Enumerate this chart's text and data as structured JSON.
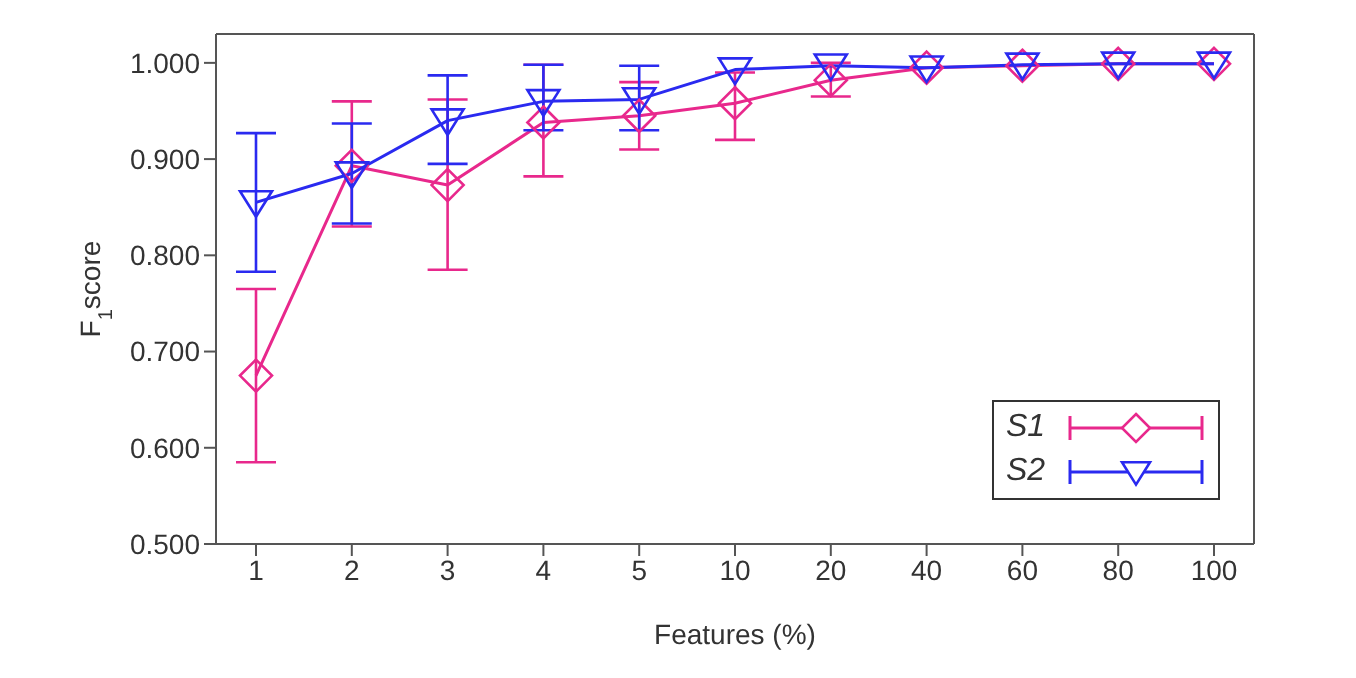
{
  "chart_data": {
    "type": "line",
    "xlabel": "Features (%)",
    "ylabel": "F$_{1}$score",
    "categories": [
      "1",
      "2",
      "3",
      "4",
      "5",
      "10",
      "20",
      "40",
      "60",
      "80",
      "100"
    ],
    "series": [
      {
        "name": "S1",
        "color": "#e8288c",
        "marker": "diamond",
        "values": [
          0.675,
          0.893,
          0.873,
          0.938,
          0.945,
          0.958,
          0.982,
          0.995,
          0.997,
          0.999,
          0.999
        ],
        "errors": [
          [
            0.585,
            0.765
          ],
          [
            0.83,
            0.96
          ],
          [
            0.785,
            0.962
          ],
          [
            0.882,
            0.998
          ],
          [
            0.91,
            0.98
          ],
          [
            0.92,
            0.99
          ],
          [
            0.965,
            1.0
          ],
          null,
          null,
          null,
          null
        ]
      },
      {
        "name": "S2",
        "color": "#2a2af0",
        "marker": "triangle",
        "values": [
          0.855,
          0.885,
          0.94,
          0.96,
          0.962,
          0.993,
          0.997,
          0.995,
          0.998,
          0.999,
          0.999
        ],
        "errors": [
          [
            0.783,
            0.927
          ],
          [
            0.833,
            0.937
          ],
          [
            0.895,
            0.987
          ],
          [
            0.93,
            0.998
          ],
          [
            0.93,
            0.997
          ],
          null,
          null,
          null,
          null,
          null,
          null
        ]
      }
    ],
    "ylim": [
      0.5,
      1.03
    ],
    "yticks": [
      {
        "value": 0.5,
        "label": "0.500"
      },
      {
        "value": 0.6,
        "label": "0.600"
      },
      {
        "value": 0.7,
        "label": "0.700"
      },
      {
        "value": 0.8,
        "label": "0.800"
      },
      {
        "value": 0.9,
        "label": "0.900"
      },
      {
        "value": 1.0,
        "label": "1.000"
      }
    ],
    "grid": false,
    "legend": "bottom right",
    "line_style": "solid"
  }
}
